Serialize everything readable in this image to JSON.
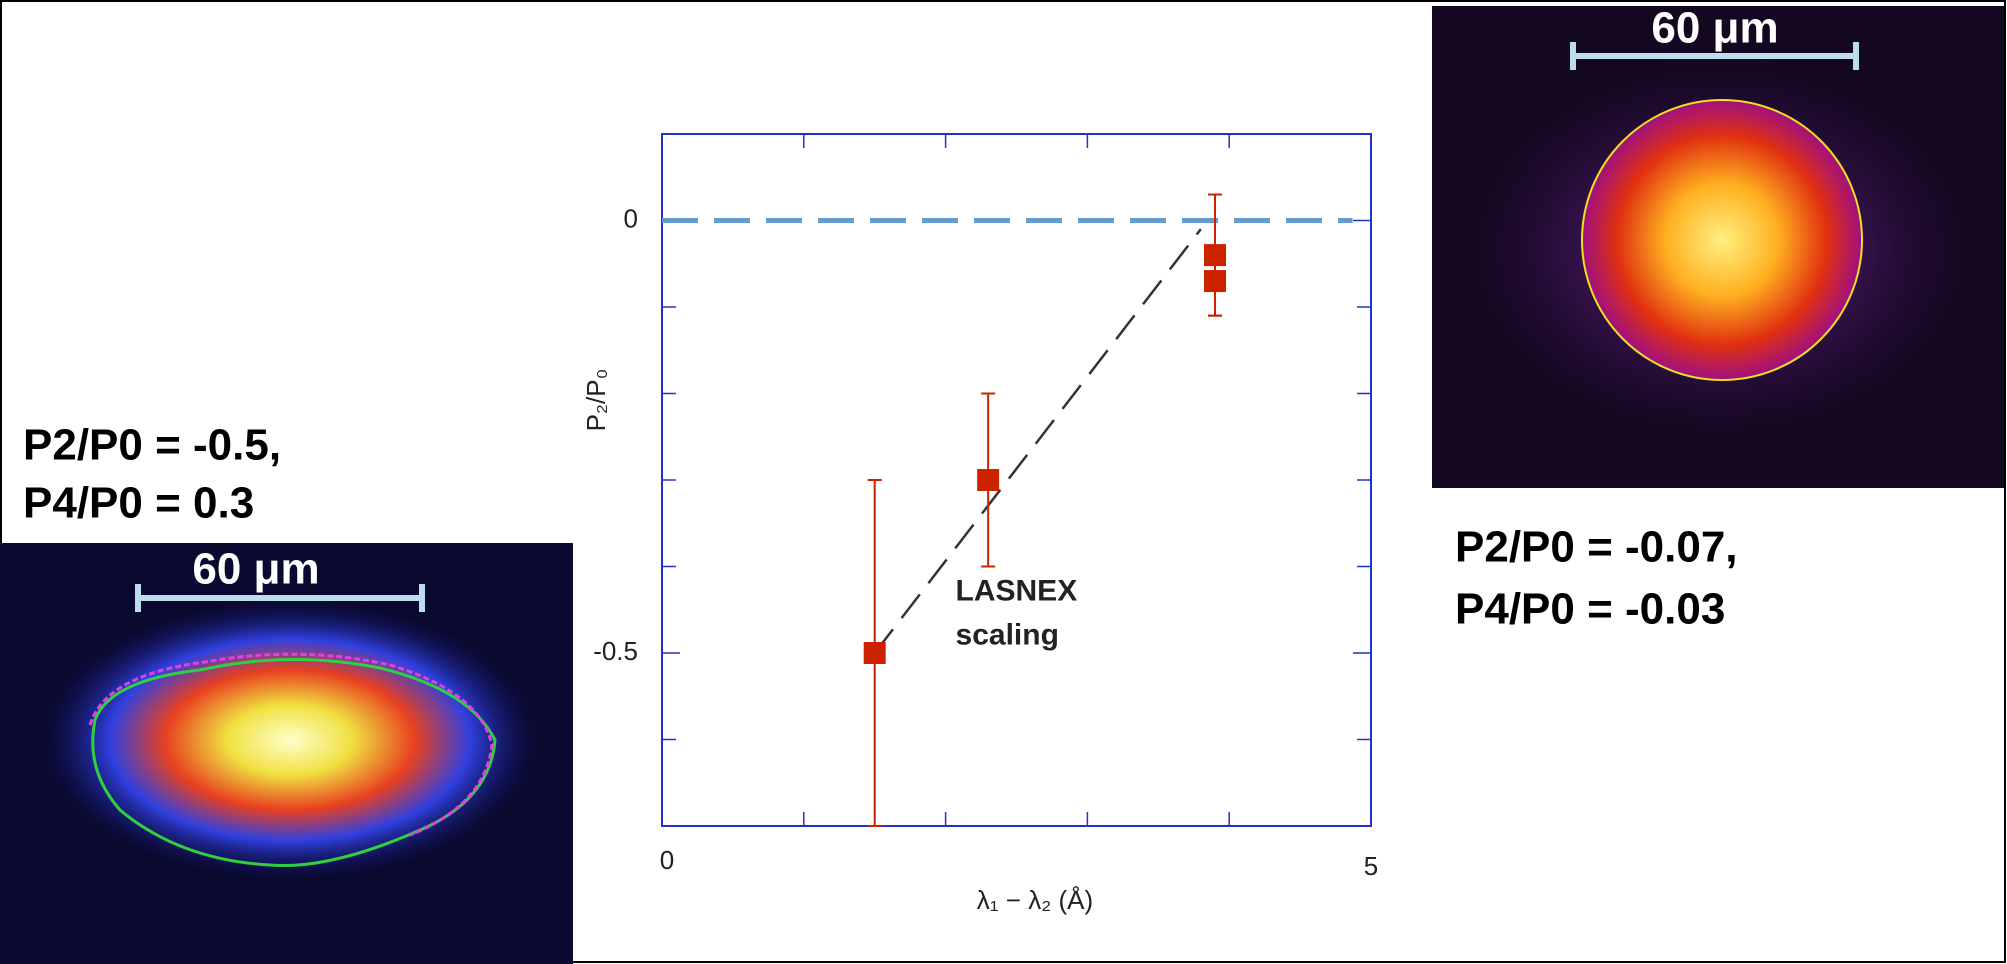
{
  "chart_data": {
    "type": "scatter",
    "xlabel": "λ₁ − λ₂ (Å)",
    "ylabel": "P₂/P₀",
    "xlim": [
      0,
      5
    ],
    "ylim": [
      -0.7,
      0.1
    ],
    "xticks": [
      0,
      5
    ],
    "yticks": [
      0,
      -0.5
    ],
    "xminorticks": [
      1,
      2,
      3,
      4
    ],
    "yminorticks": [
      0.1,
      -0.1,
      -0.2,
      -0.3,
      -0.4,
      -0.6,
      -0.7
    ],
    "axis_color": "#2233cc",
    "series": [
      {
        "color": "#cc2200",
        "x": [
          1.5,
          2.3,
          3.9,
          3.9
        ],
        "values": [
          -0.5,
          -0.3,
          -0.04,
          -0.07
        ],
        "errors": [
          0.2,
          0.1,
          0.07,
          0.04
        ]
      }
    ],
    "fit_line": {
      "x": [
        1.5,
        3.8
      ],
      "values": [
        -0.5,
        -0.01
      ],
      "color": "#333333",
      "label": [
        "LASNEX",
        "scaling"
      ],
      "label_x": 2.07,
      "label_y": -0.43
    },
    "reference_line": {
      "value": 0,
      "x": [
        0,
        4.87
      ],
      "color": "#6699cc"
    }
  },
  "panels": {
    "left": {
      "lines": [
        "P2/P0 = -0.5,",
        "P4/P0 = 0.3"
      ],
      "scale_bar": "60 μm"
    },
    "right": {
      "lines": [
        "P2/P0 = -0.07,",
        "P4/P0 = -0.03"
      ],
      "scale_bar": "60 μm"
    }
  }
}
